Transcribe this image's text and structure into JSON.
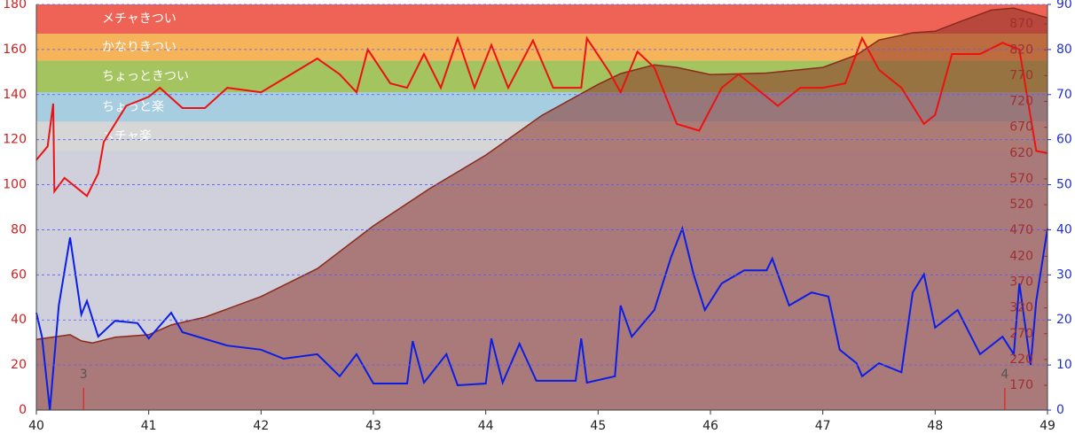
{
  "chart_data": {
    "type": "line",
    "xlim": [
      40,
      49
    ],
    "xticks": [
      40,
      41,
      42,
      43,
      44,
      45,
      46,
      47,
      48,
      49
    ],
    "ylim": [
      0,
      180
    ],
    "yticks": [
      0,
      20,
      40,
      60,
      80,
      100,
      120,
      140,
      160,
      180
    ],
    "y2lim": [
      122,
      908
    ],
    "y2ticks": [
      170,
      220,
      270,
      320,
      370,
      420,
      470,
      520,
      570,
      620,
      670,
      720,
      770,
      820,
      870
    ],
    "y3lim": [
      0,
      90
    ],
    "y3ticks": [
      0,
      10,
      20,
      30,
      40,
      50,
      60,
      70,
      80,
      90
    ],
    "grid": true,
    "bands": [
      {
        "label": "メチャきつい",
        "from": 167,
        "to": 180,
        "color": "#ee6355"
      },
      {
        "label": "かなりきつい",
        "from": 155,
        "to": 167,
        "color": "#f5b35a"
      },
      {
        "label": "ちょっときつい",
        "from": 141,
        "to": 155,
        "color": "#a3c45e"
      },
      {
        "label": "ちょっと楽",
        "from": 128,
        "to": 141,
        "color": "#a6cde0"
      },
      {
        "label": "メチャ楽",
        "from": 115,
        "to": 128,
        "color": "#d6d6d6"
      }
    ],
    "annotations": [
      {
        "x": 40.42,
        "label": "3"
      },
      {
        "x": 48.62,
        "label": "4"
      }
    ],
    "series": [
      {
        "axis": "y2",
        "color": "#8b2a1a",
        "fill": true,
        "x": [
          40.0,
          40.3,
          40.4,
          40.5,
          40.7,
          41.0,
          41.2,
          41.5,
          42.0,
          42.5,
          43.0,
          43.5,
          44.0,
          44.5,
          45.0,
          45.2,
          45.5,
          45.7,
          46.0,
          46.5,
          47.0,
          47.3,
          47.5,
          47.8,
          48.0,
          48.2,
          48.5,
          48.7,
          49.0
        ],
        "values": [
          259,
          268,
          256,
          252,
          263,
          268,
          287,
          302,
          342,
          396,
          479,
          551,
          616,
          693,
          753,
          774,
          791,
          786,
          772,
          775,
          786,
          810,
          839,
          853,
          856,
          873,
          897,
          901,
          882
        ]
      },
      {
        "axis": "y",
        "color": "#ee1111",
        "x": [
          40.0,
          40.1,
          40.15,
          40.16,
          40.25,
          40.4,
          40.45,
          40.55,
          40.6,
          40.8,
          41.0,
          41.1,
          41.3,
          41.5,
          41.7,
          42.0,
          42.2,
          42.5,
          42.7,
          42.85,
          42.95,
          43.15,
          43.3,
          43.45,
          43.6,
          43.75,
          43.9,
          44.05,
          44.2,
          44.42,
          44.6,
          44.85,
          44.9,
          45.1,
          45.2,
          45.35,
          45.5,
          45.7,
          45.9,
          46.1,
          46.25,
          46.4,
          46.6,
          46.8,
          47.0,
          47.2,
          47.35,
          47.5,
          47.7,
          47.9,
          48.0,
          48.15,
          48.4,
          48.6,
          48.75,
          48.9,
          49.0
        ],
        "values": [
          111,
          117,
          136,
          97,
          103,
          97,
          95,
          105,
          119,
          135,
          139,
          143,
          134,
          134,
          143,
          141,
          147,
          156,
          149,
          141,
          160,
          145,
          143,
          158,
          143,
          165,
          143,
          162,
          143,
          164,
          143,
          143,
          165,
          150,
          141,
          159,
          152,
          127,
          124,
          143,
          149,
          143,
          135,
          143,
          143,
          145,
          165,
          151,
          143,
          127,
          131,
          158,
          158,
          163,
          160,
          115,
          114
        ]
      },
      {
        "axis": "y3",
        "color": "#0a1ee8",
        "x": [
          40.0,
          40.05,
          40.12,
          40.2,
          40.3,
          40.4,
          40.45,
          40.55,
          40.7,
          40.9,
          41.0,
          41.2,
          41.3,
          41.7,
          42.0,
          42.2,
          42.5,
          42.7,
          42.85,
          43.0,
          43.3,
          43.35,
          43.45,
          43.65,
          43.75,
          44.0,
          44.05,
          44.15,
          44.3,
          44.45,
          44.8,
          44.85,
          44.9,
          45.15,
          45.2,
          45.3,
          45.5,
          45.65,
          45.75,
          45.85,
          45.95,
          46.1,
          46.3,
          46.5,
          46.55,
          46.7,
          46.9,
          47.05,
          47.15,
          47.3,
          47.35,
          47.5,
          47.7,
          47.8,
          47.9,
          48.0,
          48.2,
          48.4,
          48.6,
          48.7,
          48.75,
          48.85,
          48.9,
          49.0
        ],
        "values": [
          21.6,
          16.3,
          0,
          23.2,
          38.3,
          21.2,
          24.2,
          16.3,
          19.8,
          19.3,
          15.9,
          21.6,
          17.3,
          14.3,
          13.4,
          11.4,
          12.4,
          7.5,
          12.4,
          5.9,
          5.9,
          15.3,
          6.1,
          12.4,
          5.5,
          5.9,
          15.9,
          6.1,
          14.7,
          6.5,
          6.5,
          15.9,
          6.1,
          7.5,
          23.2,
          16.3,
          22.2,
          34,
          40.3,
          30.1,
          22.2,
          28.1,
          31,
          31,
          33.6,
          23.2,
          26.1,
          25.2,
          13.4,
          10.4,
          7.5,
          10.4,
          8.4,
          26.1,
          30.1,
          18.3,
          22.2,
          12.4,
          16.3,
          12.4,
          28.1,
          10,
          24.2,
          40.3
        ]
      }
    ]
  }
}
